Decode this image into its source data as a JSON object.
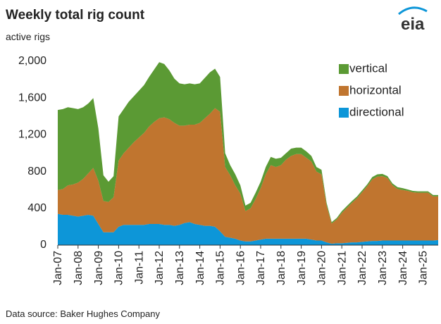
{
  "chart_data": {
    "type": "stacked_area",
    "title": "Weekly total rig count",
    "subtitle": "active rigs",
    "source": "Data source: Baker Hughes Company",
    "logo": "eia",
    "x": [
      "Jan-07",
      "Apr-07",
      "Jul-07",
      "Oct-07",
      "Jan-08",
      "Apr-08",
      "Jul-08",
      "Oct-08",
      "Jan-09",
      "Apr-09",
      "Jul-09",
      "Oct-09",
      "Jan-10",
      "Apr-10",
      "Jul-10",
      "Oct-10",
      "Jan-11",
      "Apr-11",
      "Jul-11",
      "Oct-11",
      "Jan-12",
      "Apr-12",
      "Jul-12",
      "Oct-12",
      "Jan-13",
      "Apr-13",
      "Jul-13",
      "Oct-13",
      "Jan-14",
      "Apr-14",
      "Jul-14",
      "Oct-14",
      "Jan-15",
      "Apr-15",
      "Jul-15",
      "Oct-15",
      "Jan-16",
      "Apr-16",
      "Jul-16",
      "Oct-16",
      "Jan-17",
      "Apr-17",
      "Jul-17",
      "Oct-17",
      "Jan-18",
      "Apr-18",
      "Jul-18",
      "Oct-18",
      "Jan-19",
      "Apr-19",
      "Jul-19",
      "Oct-19",
      "Jan-20",
      "Apr-20",
      "Jul-20",
      "Oct-20",
      "Jan-21",
      "Apr-21",
      "Jul-21",
      "Oct-21",
      "Jan-22",
      "Apr-22",
      "Jul-22",
      "Oct-22",
      "Jan-23",
      "Apr-23",
      "Jul-23",
      "Oct-23",
      "Jan-24",
      "Apr-24",
      "Jul-24",
      "Oct-24",
      "Jan-25",
      "Apr-25",
      "Jul-25",
      "Oct-25"
    ],
    "xticks": [
      "Jan-07",
      "Jan-08",
      "Jan-09",
      "Jan-10",
      "Jan-11",
      "Jan-12",
      "Jan-13",
      "Jan-14",
      "Jan-15",
      "Jan-16",
      "Jan-17",
      "Jan-18",
      "Jan-19",
      "Jan-20",
      "Jan-21",
      "Jan-22",
      "Jan-23",
      "Jan-24",
      "Jan-25"
    ],
    "ylim": [
      0,
      2000
    ],
    "yticks": [
      0,
      400,
      800,
      {
        "value": 1200,
        "label": "1,200"
      },
      {
        "value": 1600,
        "label": "1,600"
      },
      {
        "value": 2000,
        "label": "2,000"
      }
    ],
    "grid": false,
    "legend": "top-right",
    "series": [
      {
        "name": "directional",
        "color": "#0d96d8",
        "values": [
          340,
          330,
          330,
          320,
          310,
          320,
          330,
          320,
          230,
          140,
          140,
          140,
          200,
          220,
          220,
          220,
          220,
          220,
          230,
          230,
          230,
          220,
          220,
          210,
          220,
          240,
          250,
          230,
          220,
          210,
          210,
          200,
          150,
          90,
          80,
          70,
          50,
          40,
          40,
          50,
          60,
          70,
          70,
          70,
          70,
          70,
          70,
          70,
          70,
          70,
          60,
          50,
          50,
          30,
          15,
          20,
          20,
          25,
          30,
          30,
          35,
          40,
          45,
          45,
          50,
          50,
          50,
          50,
          50,
          50,
          50,
          50,
          50,
          50,
          50,
          55
        ]
      },
      {
        "name": "horizontal",
        "color": "#c0752f",
        "values": [
          260,
          280,
          320,
          340,
          370,
          400,
          450,
          520,
          470,
          340,
          330,
          380,
          720,
          780,
          840,
          900,
          950,
          1000,
          1060,
          1110,
          1150,
          1170,
          1150,
          1120,
          1080,
          1060,
          1060,
          1080,
          1110,
          1170,
          1220,
          1290,
          1300,
          760,
          680,
          580,
          510,
          330,
          360,
          450,
          560,
          700,
          800,
          780,
          800,
          860,
          900,
          920,
          920,
          880,
          850,
          750,
          720,
          400,
          220,
          260,
          330,
          380,
          430,
          480,
          540,
          600,
          670,
          700,
          700,
          680,
          600,
          560,
          550,
          540,
          525,
          520,
          520,
          520,
          480,
          475
        ]
      },
      {
        "name": "vertical",
        "color": "#5b9a34",
        "values": [
          870,
          870,
          850,
          830,
          800,
          780,
          760,
          760,
          570,
          280,
          220,
          230,
          480,
          480,
          500,
          500,
          510,
          520,
          540,
          570,
          610,
          580,
          530,
          480,
          460,
          450,
          450,
          440,
          430,
          440,
          450,
          430,
          380,
          150,
          110,
          120,
          90,
          60,
          60,
          70,
          70,
          80,
          90,
          90,
          80,
          70,
          80,
          70,
          70,
          70,
          60,
          50,
          50,
          30,
          15,
          15,
          20,
          20,
          20,
          20,
          20,
          20,
          25,
          25,
          25,
          20,
          20,
          20,
          20,
          15,
          15,
          15,
          15,
          15,
          15,
          15
        ]
      }
    ]
  }
}
